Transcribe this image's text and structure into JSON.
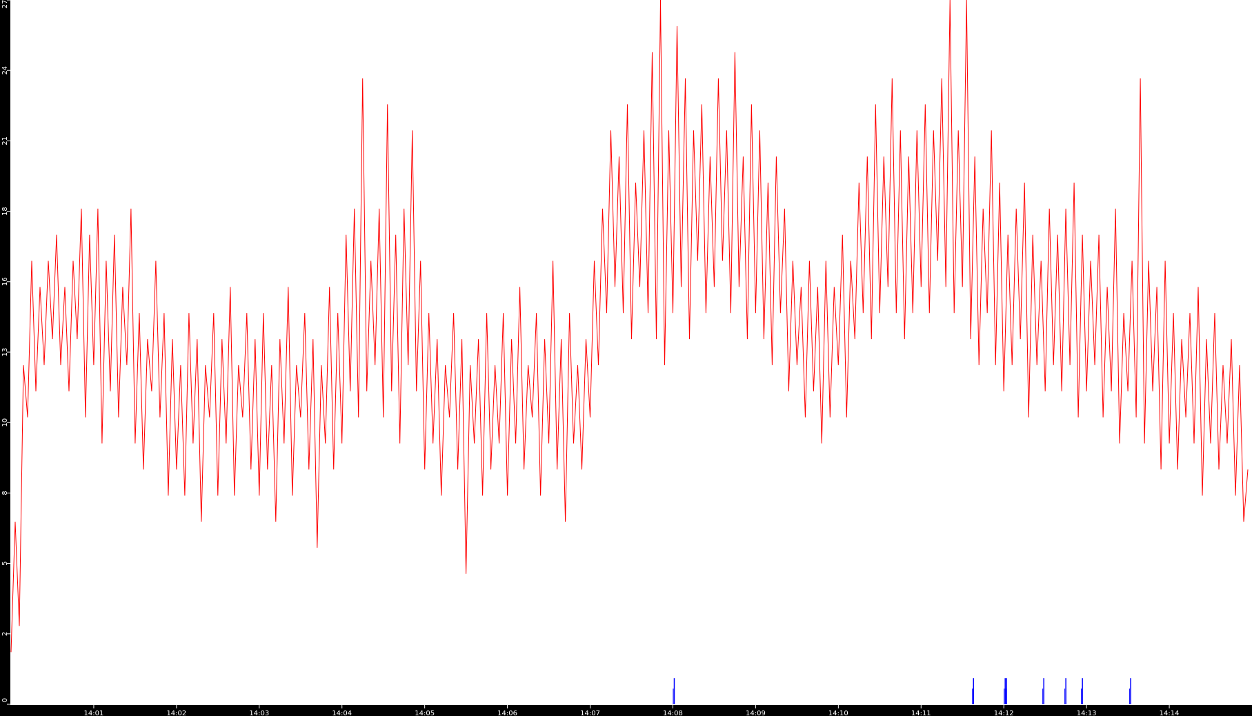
{
  "chart_data": {
    "type": "line",
    "xlim": [
      "14:00:00",
      "14:15:00"
    ],
    "ylim": [
      0,
      27
    ],
    "grid": false,
    "legend": "none",
    "x_ticks": [
      "14:01",
      "14:02",
      "14:03",
      "14:04",
      "14:05",
      "14:06",
      "14:07",
      "14:08",
      "14:09",
      "14:10",
      "14:11",
      "14:12",
      "14:13",
      "14:14"
    ],
    "y_ticks": [
      0,
      2.7,
      5.4,
      8.1,
      10.8,
      13.5,
      16.2,
      18.9,
      21.6,
      24.3,
      27
    ],
    "y_tick_labels": [
      "0",
      "2",
      "5",
      "8",
      "10",
      "13",
      "16",
      "18",
      "21",
      "24",
      "27"
    ],
    "series": [
      {
        "color": "#ff0000",
        "start": "14:00:00",
        "interval_seconds": 3,
        "values": [
          2,
          7,
          3,
          13,
          11,
          17,
          12,
          16,
          13,
          17,
          14,
          18,
          13,
          16,
          12,
          17,
          14,
          19,
          11,
          18,
          13,
          19,
          10,
          17,
          12,
          18,
          11,
          16,
          13,
          19,
          10,
          15,
          9,
          14,
          12,
          17,
          11,
          15,
          8,
          14,
          9,
          13,
          8,
          15,
          10,
          14,
          7,
          13,
          11,
          15,
          8,
          14,
          10,
          16,
          8,
          13,
          11,
          15,
          9,
          14,
          8,
          15,
          9,
          13,
          7,
          14,
          10,
          16,
          8,
          13,
          11,
          15,
          9,
          14,
          6,
          13,
          10,
          16,
          9,
          15,
          10,
          18,
          12,
          19,
          11,
          24,
          12,
          17,
          13,
          19,
          11,
          23,
          12,
          18,
          10,
          19,
          13,
          22,
          12,
          17,
          9,
          15,
          10,
          14,
          8,
          13,
          11,
          15,
          9,
          14,
          5,
          13,
          10,
          14,
          8,
          15,
          9,
          13,
          10,
          15,
          8,
          14,
          10,
          16,
          9,
          13,
          11,
          15,
          8,
          14,
          10,
          17,
          9,
          14,
          7,
          15,
          10,
          13,
          9,
          14,
          11,
          17,
          13,
          19,
          15,
          22,
          16,
          21,
          15,
          23,
          14,
          20,
          16,
          22,
          15,
          25,
          14,
          27,
          13,
          22,
          15,
          26,
          16,
          24,
          14,
          22,
          17,
          23,
          15,
          21,
          16,
          24,
          17,
          22,
          15,
          25,
          16,
          21,
          14,
          23,
          15,
          22,
          14,
          20,
          13,
          21,
          15,
          19,
          12,
          17,
          13,
          16,
          11,
          17,
          12,
          16,
          10,
          17,
          11,
          16,
          13,
          18,
          11,
          17,
          14,
          20,
          15,
          21,
          14,
          23,
          15,
          21,
          16,
          24,
          15,
          22,
          14,
          21,
          15,
          22,
          16,
          23,
          15,
          22,
          17,
          24,
          16,
          27,
          15,
          22,
          16,
          27,
          14,
          21,
          13,
          19,
          15,
          22,
          13,
          20,
          12,
          18,
          13,
          19,
          14,
          20,
          11,
          18,
          13,
          17,
          12,
          19,
          13,
          18,
          12,
          19,
          13,
          20,
          11,
          18,
          12,
          17,
          13,
          18,
          11,
          16,
          12,
          19,
          10,
          15,
          12,
          17,
          11,
          24,
          10,
          17,
          12,
          16,
          9,
          17,
          10,
          15,
          9,
          14,
          11,
          15,
          10,
          16,
          8,
          14,
          10,
          15,
          9,
          13,
          10,
          14,
          8,
          13,
          7,
          9
        ]
      },
      {
        "color": "#0000ff",
        "type": "events",
        "times": [
          "14:08:01",
          "14:11:38",
          "14:12:01",
          "14:12:02",
          "14:12:29",
          "14:12:45",
          "14:12:57",
          "14:13:32"
        ],
        "value": 1
      }
    ]
  }
}
